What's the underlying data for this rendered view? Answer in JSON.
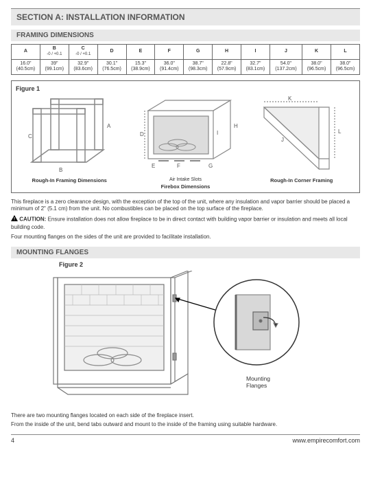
{
  "section_title": "SECTION A: INSTALLATION INFORMATION",
  "framing": {
    "heading": "FRAMING DIMENSIONS",
    "columns": [
      {
        "label": "A",
        "tol": ""
      },
      {
        "label": "B",
        "tol": "-0 / +0.1"
      },
      {
        "label": "C",
        "tol": "-0 / +0.1"
      },
      {
        "label": "D",
        "tol": ""
      },
      {
        "label": "E",
        "tol": ""
      },
      {
        "label": "F",
        "tol": ""
      },
      {
        "label": "G",
        "tol": ""
      },
      {
        "label": "H",
        "tol": ""
      },
      {
        "label": "I",
        "tol": ""
      },
      {
        "label": "J",
        "tol": ""
      },
      {
        "label": "K",
        "tol": ""
      },
      {
        "label": "L",
        "tol": ""
      }
    ],
    "row": [
      {
        "in": "16.0\"",
        "cm": "(40.5cm)"
      },
      {
        "in": "39\"",
        "cm": "(99.1cm)"
      },
      {
        "in": "32.9\"",
        "cm": "(83.6cm)"
      },
      {
        "in": "30.1\"",
        "cm": "(76.5cm)"
      },
      {
        "in": "15.3\"",
        "cm": "(38.9cm)"
      },
      {
        "in": "36.0\"",
        "cm": "(91.4cm)"
      },
      {
        "in": "38.7\"",
        "cm": "(98.3cm)"
      },
      {
        "in": "22.8\"",
        "cm": "(57.9cm)"
      },
      {
        "in": "32.7\"",
        "cm": "(83.1cm)"
      },
      {
        "in": "54.0\"",
        "cm": "(137.2cm)"
      },
      {
        "in": "38.0\"",
        "cm": "(96.5cm)"
      },
      {
        "in": "38.0\"",
        "cm": "(96.5cm)"
      }
    ]
  },
  "figure1": {
    "title": "Figure 1",
    "sub1": "Rough-In Framing Dimensions",
    "sub2": "Firebox Dimensions",
    "sub3": "Rough-In Corner Framing",
    "airintake": "Air Intake Slots",
    "stroke": "#999"
  },
  "text": {
    "p1": "This fireplace is a zero clearance design, with the exception of the top of the unit, where any insulation and vapor barrier should be placed a minimum of 2\" (5.1 cm) from the unit. No combustibles can be placed on the top surface of the fireplace.",
    "caution_label": "CAUTION:",
    "caution": "Ensure installation does not allow fireplace to be in direct contact with building vapor barrier or insulation and meets all local building code.",
    "p2": "Four mounting flanges on the sides of the unit are provided to facilitate installation."
  },
  "mounting": {
    "heading": "MOUNTING FLANGES",
    "fig_title": "Figure 2",
    "callout": "Mounting Flanges",
    "p1": "There are two mounting flanges located on each side of the fireplace insert.",
    "p2": "From the inside of the unit, bend tabs outward and mount to the inside of the framing using suitable hardware."
  },
  "footer": {
    "page": "4",
    "url": "www.empirecomfort.com"
  }
}
